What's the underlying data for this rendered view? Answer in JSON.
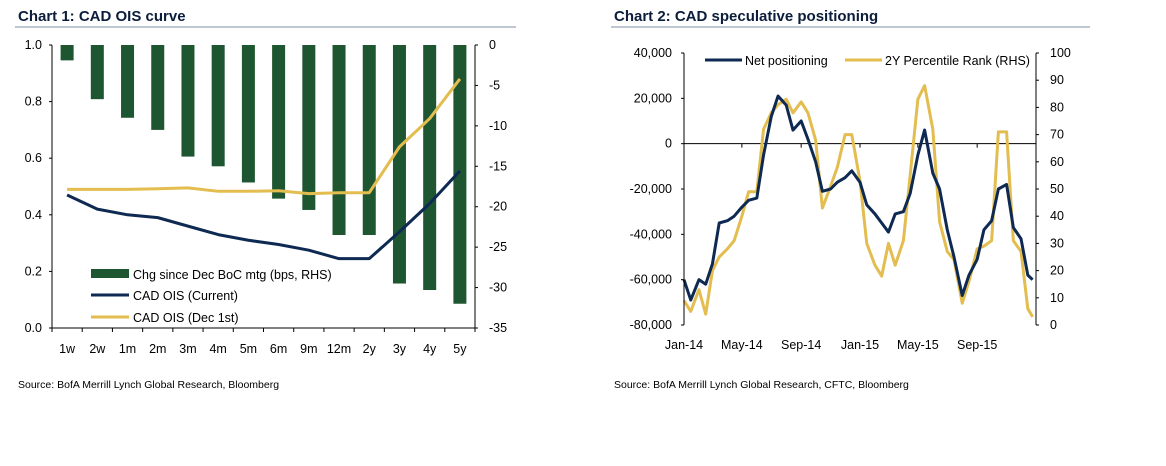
{
  "chart_data": [
    {
      "type": "bar+line",
      "title": "Chart 1: CAD OIS curve",
      "source": "Source: BofA Merrill Lynch Global Research, Bloomberg",
      "categories": [
        "1w",
        "2w",
        "1m",
        "2m",
        "3m",
        "4m",
        "5m",
        "6m",
        "9m",
        "12m",
        "2y",
        "3y",
        "4y",
        "5y"
      ],
      "y_left": {
        "range": [
          0,
          1.0
        ],
        "ticks": [
          "0.0",
          "0.2",
          "0.4",
          "0.6",
          "0.8",
          "1.0"
        ]
      },
      "y_right": {
        "range": [
          -35,
          0
        ],
        "ticks": [
          "-35",
          "-30",
          "-25",
          "-20",
          "-15",
          "-10",
          "-5",
          "0"
        ]
      },
      "series": [
        {
          "name": "Chg since Dec BoC mtg (bps, RHS)",
          "kind": "bar",
          "axis": "right",
          "color": "#1e5631",
          "values": [
            -1.9,
            -6.7,
            -9.0,
            -10.5,
            -13.8,
            -15.0,
            -17.0,
            -19.0,
            -20.4,
            -23.5,
            -23.5,
            -29.5,
            -30.3,
            -32.0
          ]
        },
        {
          "name": "CAD OIS (Current)",
          "kind": "line",
          "axis": "left",
          "color": "#0e2a52",
          "values": [
            0.47,
            0.42,
            0.4,
            0.39,
            0.36,
            0.33,
            0.31,
            0.295,
            0.275,
            0.245,
            0.245,
            0.34,
            0.44,
            0.555
          ]
        },
        {
          "name": "CAD OIS (Dec 1st)",
          "kind": "line",
          "axis": "left",
          "color": "#e3bd4f",
          "values": [
            0.49,
            0.49,
            0.49,
            0.492,
            0.495,
            0.483,
            0.483,
            0.485,
            0.475,
            0.478,
            0.478,
            0.64,
            0.74,
            0.88
          ]
        }
      ],
      "legend": "bottom-left"
    },
    {
      "type": "line",
      "title": "Chart 2: CAD speculative positioning",
      "source": "Source: BofA Merrill Lynch Global Research, CFTC, Bloomberg",
      "x_ticks": [
        "Jan-14",
        "May-14",
        "Sep-14",
        "Jan-15",
        "May-15",
        "Sep-15"
      ],
      "x_range": [
        "2014-01-01",
        "2016-01-01"
      ],
      "y_left": {
        "range": [
          -80000,
          40000
        ],
        "ticks": [
          "-80,000",
          "-60,000",
          "-40,000",
          "-20,000",
          "0",
          "20,000",
          "40,000"
        ]
      },
      "y_right": {
        "range": [
          0,
          100
        ],
        "ticks": [
          "0",
          "10",
          "20",
          "30",
          "40",
          "50",
          "60",
          "70",
          "80",
          "90",
          "100"
        ]
      },
      "zero_line": true,
      "legend": "top",
      "x": [
        "2014-01-01",
        "2014-01-15",
        "2014-02-01",
        "2014-02-15",
        "2014-03-01",
        "2014-03-15",
        "2014-04-01",
        "2014-04-15",
        "2014-05-01",
        "2014-05-15",
        "2014-06-01",
        "2014-06-15",
        "2014-07-01",
        "2014-07-15",
        "2014-08-01",
        "2014-08-15",
        "2014-09-01",
        "2014-09-15",
        "2014-10-01",
        "2014-10-15",
        "2014-11-01",
        "2014-11-15",
        "2014-12-01",
        "2014-12-15",
        "2015-01-01",
        "2015-01-15",
        "2015-02-01",
        "2015-02-15",
        "2015-03-01",
        "2015-03-15",
        "2015-04-01",
        "2015-04-15",
        "2015-05-01",
        "2015-05-15",
        "2015-06-01",
        "2015-06-15",
        "2015-07-01",
        "2015-07-15",
        "2015-08-01",
        "2015-08-15",
        "2015-09-01",
        "2015-09-15",
        "2015-10-01",
        "2015-10-15",
        "2015-11-01",
        "2015-11-15",
        "2015-12-01",
        "2015-12-15",
        "2015-12-25"
      ],
      "series": [
        {
          "name": "Net positioning",
          "axis": "left",
          "color": "#0e2a52",
          "values": [
            -60000,
            -69000,
            -60000,
            -62000,
            -53000,
            -35000,
            -34000,
            -32000,
            -28000,
            -25000,
            -24000,
            -5000,
            12000,
            21000,
            17000,
            6000,
            10000,
            2000,
            -8000,
            -21000,
            -20000,
            -17000,
            -15000,
            -12000,
            -17000,
            -27000,
            -31000,
            -35000,
            -39000,
            -31000,
            -30000,
            -22000,
            -5000,
            6000,
            -13000,
            -20000,
            -38000,
            -50000,
            -67000,
            -58000,
            -51000,
            -38000,
            -34000,
            -20000,
            -18000,
            -37000,
            -42000,
            -58000,
            -60000
          ]
        },
        {
          "name": "2Y Percentile Rank (RHS)",
          "axis": "right",
          "color": "#e3bd4f",
          "values": [
            9,
            5,
            13,
            4,
            20,
            25,
            28,
            31,
            40,
            49,
            49,
            72,
            78,
            81,
            83,
            78,
            82,
            78,
            68,
            43,
            51,
            58,
            70,
            70,
            53,
            30,
            22,
            18,
            30,
            22,
            31,
            55,
            83,
            88,
            72,
            38,
            27,
            24,
            8,
            16,
            28,
            29,
            31,
            71,
            71,
            31,
            27,
            6,
            3
          ]
        }
      ]
    }
  ]
}
